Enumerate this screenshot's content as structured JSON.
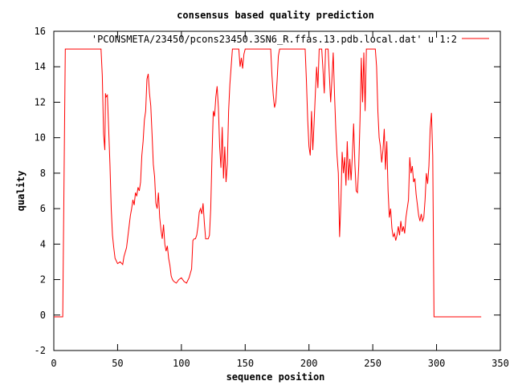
{
  "chart_data": {
    "type": "line",
    "title": "consensus based quality prediction",
    "xlabel": "sequence position",
    "ylabel": "quality",
    "xlim": [
      0,
      350
    ],
    "ylim": [
      -2,
      16
    ],
    "xticks": [
      0,
      50,
      100,
      150,
      200,
      250,
      300,
      350
    ],
    "yticks": [
      -2,
      0,
      2,
      4,
      6,
      8,
      10,
      12,
      14,
      16
    ],
    "grid": false,
    "legend": "top-right",
    "series": [
      {
        "name": "'PCONSMETA/23450/pcons23450.3SN6_R.ffas.13.pdb.local.dat' u 1:2",
        "color": "#ff0000",
        "points": [
          [
            0,
            -0.1
          ],
          [
            1,
            -0.1
          ],
          [
            7,
            -0.1
          ],
          [
            8,
            7.5
          ],
          [
            9,
            15
          ],
          [
            10,
            15
          ],
          [
            20,
            15
          ],
          [
            30,
            15
          ],
          [
            37,
            15
          ],
          [
            38,
            13.5
          ],
          [
            39,
            10.2
          ],
          [
            40,
            9.3
          ],
          [
            40.5,
            12.5
          ],
          [
            41,
            12.3
          ],
          [
            42,
            12.4
          ],
          [
            43,
            10.5
          ],
          [
            44,
            8.5
          ],
          [
            45,
            6.0
          ],
          [
            46,
            4.5
          ],
          [
            47,
            3.8
          ],
          [
            48,
            3.2
          ],
          [
            50,
            2.9
          ],
          [
            52,
            3.0
          ],
          [
            54,
            2.85
          ],
          [
            55,
            3.3
          ],
          [
            57,
            3.8
          ],
          [
            59,
            5.0
          ],
          [
            60,
            5.6
          ],
          [
            61,
            6.0
          ],
          [
            62,
            6.5
          ],
          [
            63,
            6.2
          ],
          [
            64,
            6.9
          ],
          [
            65,
            6.7
          ],
          [
            66,
            7.2
          ],
          [
            67,
            7.0
          ],
          [
            68,
            7.5
          ],
          [
            69,
            9.0
          ],
          [
            70,
            9.8
          ],
          [
            71,
            11.0
          ],
          [
            72,
            11.5
          ],
          [
            73,
            13.3
          ],
          [
            74,
            13.6
          ],
          [
            75,
            12.5
          ],
          [
            76,
            11.8
          ],
          [
            77,
            10.2
          ],
          [
            78,
            8.5
          ],
          [
            79,
            7.8
          ],
          [
            80,
            6.3
          ],
          [
            81,
            6.0
          ],
          [
            82,
            6.9
          ],
          [
            83,
            5.5
          ],
          [
            84,
            4.8
          ],
          [
            85,
            4.3
          ],
          [
            86,
            5.1
          ],
          [
            87,
            4.0
          ],
          [
            88,
            3.6
          ],
          [
            89,
            3.9
          ],
          [
            90,
            3.2
          ],
          [
            91,
            2.8
          ],
          [
            92,
            2.2
          ],
          [
            93,
            2.0
          ],
          [
            94,
            1.9
          ],
          [
            96,
            1.8
          ],
          [
            98,
            2.0
          ],
          [
            100,
            2.1
          ],
          [
            102,
            1.9
          ],
          [
            104,
            1.8
          ],
          [
            106,
            2.1
          ],
          [
            108,
            2.6
          ],
          [
            109,
            4.2
          ],
          [
            110,
            4.3
          ],
          [
            111,
            4.3
          ],
          [
            112,
            4.5
          ],
          [
            113,
            5.0
          ],
          [
            114,
            5.8
          ],
          [
            115,
            6.0
          ],
          [
            116,
            5.7
          ],
          [
            117,
            6.3
          ],
          [
            118,
            5.2
          ],
          [
            119,
            4.3
          ],
          [
            121,
            4.3
          ],
          [
            122,
            4.5
          ],
          [
            123,
            6.0
          ],
          [
            124,
            9.0
          ],
          [
            125,
            11.5
          ],
          [
            126,
            11.2
          ],
          [
            127,
            12.3
          ],
          [
            128,
            12.9
          ],
          [
            129,
            11.7
          ],
          [
            130,
            9.5
          ],
          [
            131,
            8.3
          ],
          [
            132,
            10.6
          ],
          [
            133,
            7.7
          ],
          [
            134,
            9.5
          ],
          [
            135,
            7.5
          ],
          [
            136,
            8.5
          ],
          [
            137,
            11.5
          ],
          [
            138,
            13.0
          ],
          [
            139,
            14.0
          ],
          [
            140,
            15
          ],
          [
            145,
            15
          ],
          [
            146,
            14.0
          ],
          [
            147,
            14.5
          ],
          [
            148,
            13.9
          ],
          [
            149,
            14.7
          ],
          [
            150,
            15
          ],
          [
            160,
            15
          ],
          [
            170,
            15
          ],
          [
            171,
            13.5
          ],
          [
            172,
            12.4
          ],
          [
            173,
            11.7
          ],
          [
            174,
            12.0
          ],
          [
            175,
            13.2
          ],
          [
            176,
            14.6
          ],
          [
            177,
            15
          ],
          [
            185,
            15
          ],
          [
            195,
            15
          ],
          [
            197,
            15
          ],
          [
            198,
            13.2
          ],
          [
            199,
            11.0
          ],
          [
            200,
            9.5
          ],
          [
            201,
            9.0
          ],
          [
            202,
            11.5
          ],
          [
            203,
            9.3
          ],
          [
            204,
            10.8
          ],
          [
            205,
            12.5
          ],
          [
            206,
            14.0
          ],
          [
            207,
            12.8
          ],
          [
            208,
            15
          ],
          [
            210,
            15
          ],
          [
            211,
            13.8
          ],
          [
            212,
            12.5
          ],
          [
            213,
            15
          ],
          [
            215,
            15
          ],
          [
            216,
            13.5
          ],
          [
            217,
            12.0
          ],
          [
            218,
            13.3
          ],
          [
            219,
            14.8
          ],
          [
            220,
            12.5
          ],
          [
            221,
            10.5
          ],
          [
            222,
            9.0
          ],
          [
            223,
            8.0
          ],
          [
            224,
            4.4
          ],
          [
            225,
            6.3
          ],
          [
            226,
            9.2
          ],
          [
            227,
            8.0
          ],
          [
            228,
            8.9
          ],
          [
            229,
            7.3
          ],
          [
            230,
            9.8
          ],
          [
            231,
            7.6
          ],
          [
            232,
            8.8
          ],
          [
            233,
            7.6
          ],
          [
            234,
            9.0
          ],
          [
            235,
            10.8
          ],
          [
            236,
            8.5
          ],
          [
            237,
            7.0
          ],
          [
            238,
            6.9
          ],
          [
            239,
            8.4
          ],
          [
            240,
            11.0
          ],
          [
            241,
            14.5
          ],
          [
            242,
            12.0
          ],
          [
            243,
            14.8
          ],
          [
            244,
            11.5
          ],
          [
            245,
            15
          ],
          [
            252,
            15
          ],
          [
            253,
            14.0
          ],
          [
            254,
            11.5
          ],
          [
            255,
            10.0
          ],
          [
            256,
            9.5
          ],
          [
            257,
            8.6
          ],
          [
            258,
            9.3
          ],
          [
            259,
            10.5
          ],
          [
            260,
            8.2
          ],
          [
            261,
            9.8
          ],
          [
            262,
            7.0
          ],
          [
            263,
            5.5
          ],
          [
            264,
            6.0
          ],
          [
            265,
            4.9
          ],
          [
            266,
            4.4
          ],
          [
            267,
            4.6
          ],
          [
            268,
            4.2
          ],
          [
            269,
            4.5
          ],
          [
            270,
            5.0
          ],
          [
            271,
            4.5
          ],
          [
            272,
            5.3
          ],
          [
            273,
            4.7
          ],
          [
            274,
            5.0
          ],
          [
            275,
            4.6
          ],
          [
            276,
            5.5
          ],
          [
            277,
            6.0
          ],
          [
            278,
            6.5
          ],
          [
            279,
            8.9
          ],
          [
            280,
            8.0
          ],
          [
            281,
            8.4
          ],
          [
            282,
            7.5
          ],
          [
            283,
            7.7
          ],
          [
            284,
            6.8
          ],
          [
            285,
            6.2
          ],
          [
            286,
            5.6
          ],
          [
            287,
            5.3
          ],
          [
            288,
            5.7
          ],
          [
            289,
            5.3
          ],
          [
            290,
            5.5
          ],
          [
            291,
            6.5
          ],
          [
            292,
            8.0
          ],
          [
            293,
            7.4
          ],
          [
            294,
            8.4
          ],
          [
            295,
            10.5
          ],
          [
            296,
            11.4
          ],
          [
            297,
            9.0
          ],
          [
            298,
            -0.1
          ],
          [
            310,
            -0.1
          ],
          [
            320,
            -0.1
          ],
          [
            330,
            -0.1
          ],
          [
            335,
            -0.1
          ]
        ]
      }
    ]
  }
}
